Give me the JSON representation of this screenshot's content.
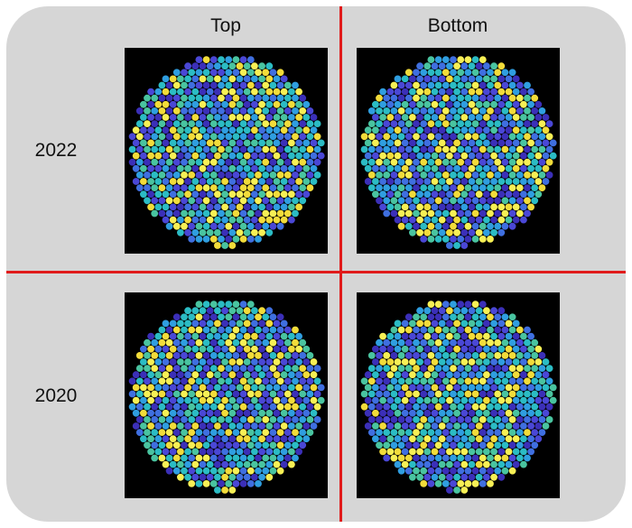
{
  "columns": [
    "Top",
    "Bottom"
  ],
  "rows": [
    "2022",
    "2020"
  ],
  "colors": {
    "panel_background": "#d6d6d6",
    "divider": "#e01b1b",
    "tile_background": "#000000",
    "palette": [
      "#3b2fb8",
      "#4a47d6",
      "#3f6fe0",
      "#2f9ee0",
      "#2bbcc4",
      "#49c4a0",
      "#f2dc3a",
      "#f7f055"
    ]
  },
  "legend": null
}
